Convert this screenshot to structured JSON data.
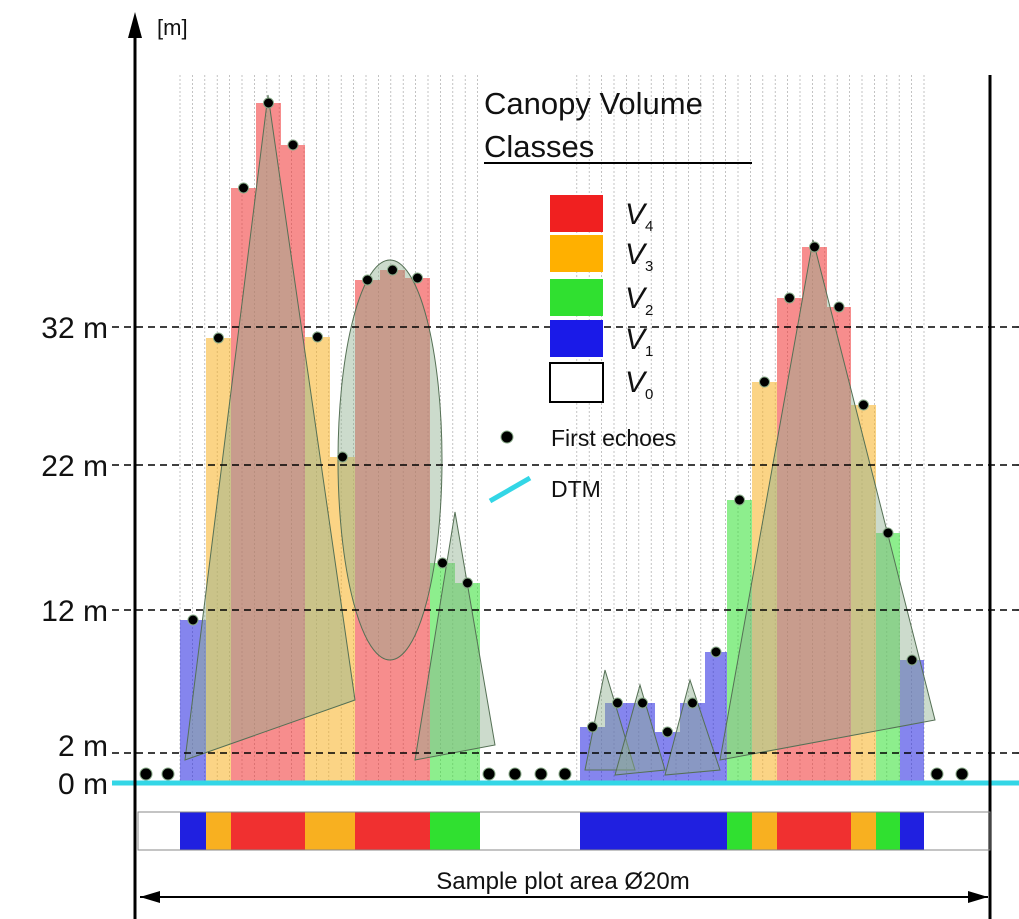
{
  "axis_unit": "[m]",
  "levels": [
    {
      "label": "32 m"
    },
    {
      "label": "22 m"
    },
    {
      "label": "12 m"
    },
    {
      "label": "2 m"
    },
    {
      "label": "0 m"
    }
  ],
  "legend": {
    "title": [
      "Canopy Volume",
      "Classes"
    ],
    "classes": [
      {
        "symbol": "V",
        "subscript": "4"
      },
      {
        "symbol": "V",
        "subscript": "3"
      },
      {
        "symbol": "V",
        "subscript": "2"
      },
      {
        "symbol": "V",
        "subscript": "1"
      },
      {
        "symbol": "V",
        "subscript": "0"
      }
    ],
    "first_echoes": "First echoes",
    "dtm": "DTM"
  },
  "plot_area": "Sample plot area Ø20m"
}
